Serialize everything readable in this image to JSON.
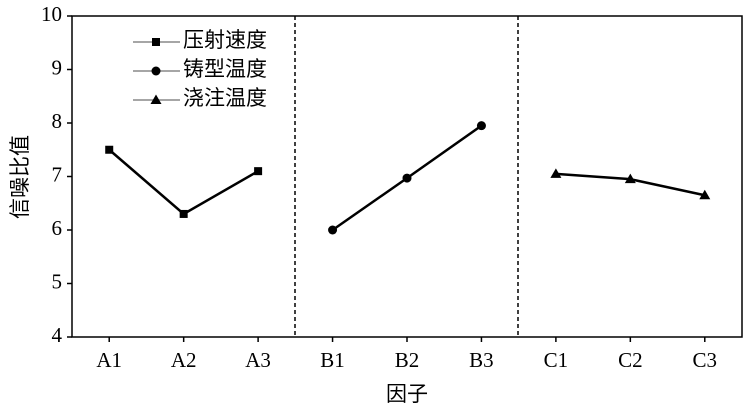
{
  "chart_data": {
    "type": "line",
    "xlabel": "因子",
    "ylabel": "信噪比值",
    "categories": [
      "A1",
      "A2",
      "A3",
      "B1",
      "B2",
      "B3",
      "C1",
      "C2",
      "C3"
    ],
    "series": [
      {
        "name": "压射速度",
        "color": "#000000",
        "marker": "square",
        "values": [
          7.5,
          6.3,
          7.1,
          null,
          null,
          null,
          null,
          null,
          null
        ]
      },
      {
        "name": "铸型温度",
        "color": "#000000",
        "marker": "circle",
        "values": [
          null,
          null,
          null,
          6.0,
          6.97,
          7.95,
          null,
          null,
          null
        ]
      },
      {
        "name": "浇注温度",
        "color": "#000000",
        "marker": "triangle",
        "values": [
          null,
          null,
          null,
          null,
          null,
          null,
          7.05,
          6.95,
          6.65
        ]
      }
    ],
    "ylim": [
      4,
      10
    ],
    "yticks": [
      4,
      5,
      6,
      7,
      8,
      9,
      10
    ],
    "grid": false,
    "legend": "upper left"
  }
}
